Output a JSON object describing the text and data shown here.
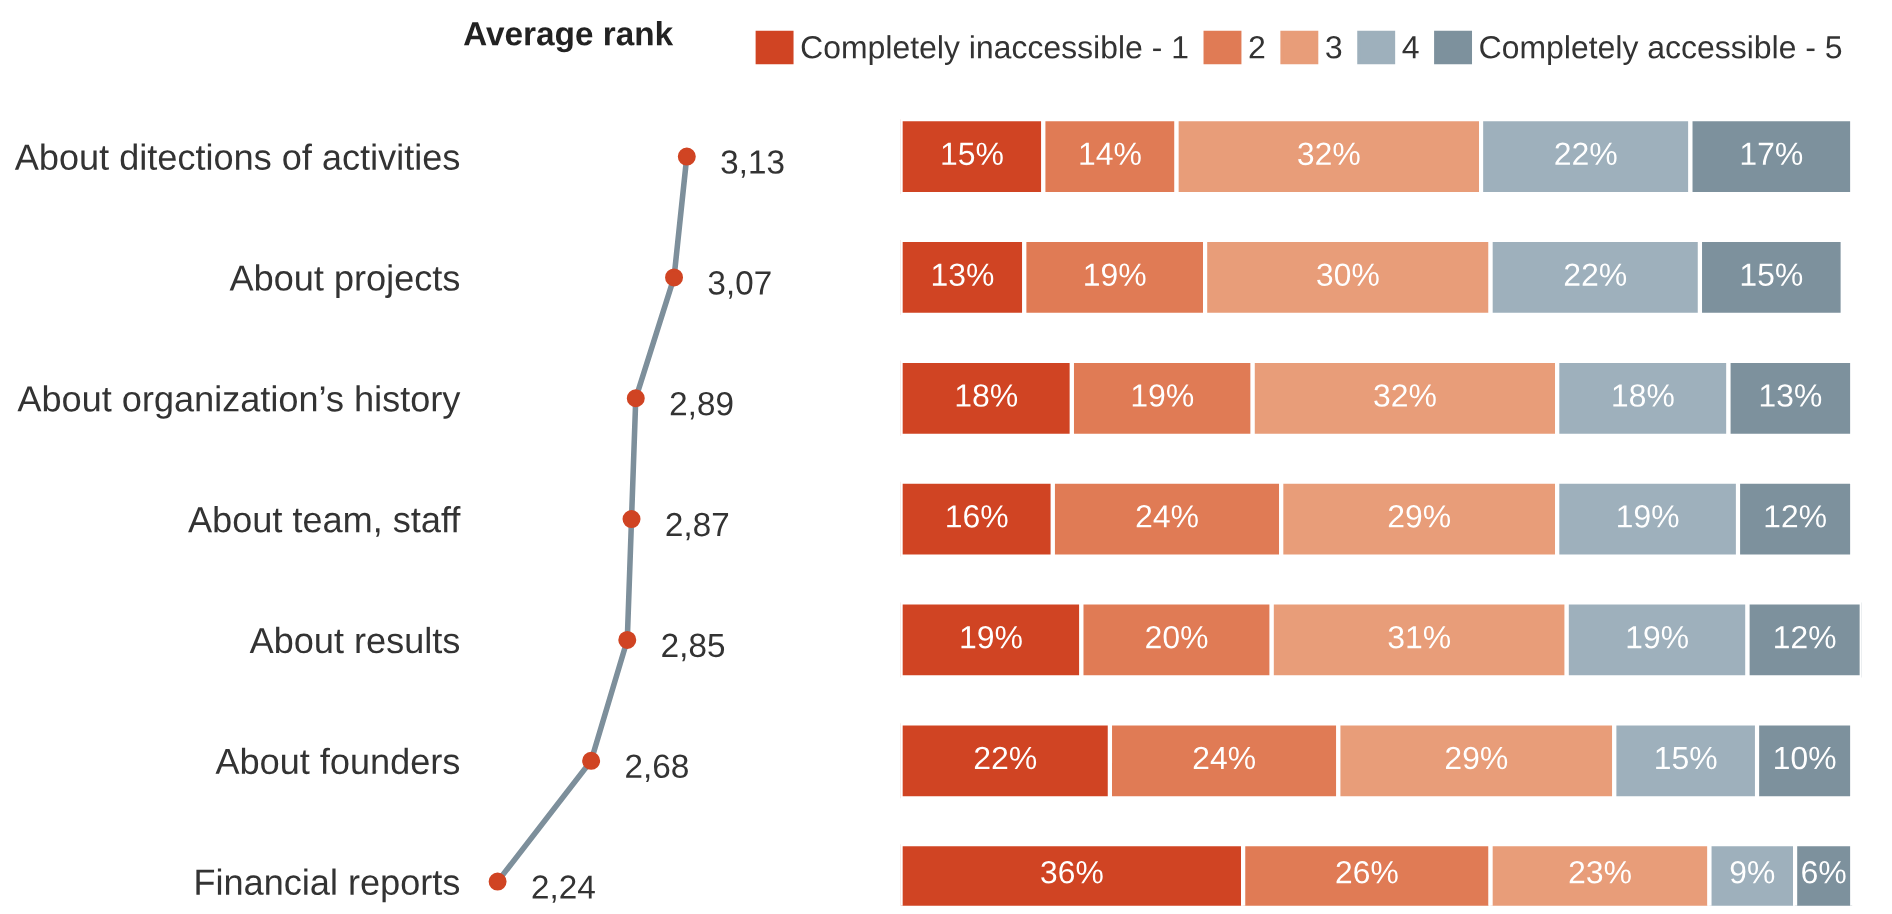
{
  "chart_data": [
    {
      "type": "line",
      "title": "Average rank",
      "orientation": "horizontal",
      "categories": [
        "About ditections of activities",
        "About projects",
        "About organization’s history",
        "About team, staff",
        "About results",
        "About founders",
        "Financial reports"
      ],
      "series": [
        {
          "color": "#7d8f9b",
          "values": [
            3.13,
            3.07,
            2.89,
            2.87,
            2.85,
            2.68,
            2.24
          ],
          "value_labels": [
            "3,13",
            "3,07",
            "2,89",
            "2,87",
            "2,85",
            "2,68",
            "2,24"
          ],
          "colors": [
            "#d04423",
            "#d04423",
            "#d04423",
            "#d04423",
            "#d04423",
            "#d04423",
            "#d04423"
          ]
        }
      ],
      "marker": "circle",
      "tick_labels": "y"
    },
    {
      "type": "bar",
      "orientation": "horizontal",
      "stacked": true,
      "legend": "top",
      "tick_labels": false,
      "xlim": [
        0,
        101
      ],
      "categories": [
        null,
        null,
        null,
        null,
        null,
        null,
        null
      ],
      "series": [
        {
          "name": "Completely inaccessible - 1",
          "color": "#d04423",
          "values": [
            15,
            13,
            18,
            16,
            19,
            22,
            36
          ],
          "value_labels": [
            "15%",
            "13%",
            "18%",
            "16%",
            "19%",
            "22%",
            "36%"
          ]
        },
        {
          "name": "2",
          "color": "#e07b55",
          "values": [
            14,
            19,
            19,
            24,
            20,
            24,
            26
          ],
          "value_labels": [
            "14%",
            "19%",
            "19%",
            "24%",
            "20%",
            "24%",
            "26%"
          ]
        },
        {
          "name": "3",
          "color": "#e89d79",
          "values": [
            32,
            30,
            32,
            29,
            31,
            29,
            23
          ],
          "value_labels": [
            "32%",
            "30%",
            "32%",
            "29%",
            "31%",
            "29%",
            "23%"
          ]
        },
        {
          "name": "4",
          "color": "#9eb0bc",
          "values": [
            22,
            22,
            18,
            19,
            19,
            15,
            9
          ],
          "value_labels": [
            "22%",
            "22%",
            "18%",
            "19%",
            "19%",
            "15%",
            "9%"
          ]
        },
        {
          "name": "Completely accessible - 5",
          "color": "#7d919d",
          "values": [
            17,
            15,
            13,
            12,
            12,
            10,
            6
          ],
          "value_labels": [
            "17%",
            "15%",
            "13%",
            "12%",
            "12%",
            "10%",
            "6%"
          ]
        }
      ]
    }
  ]
}
